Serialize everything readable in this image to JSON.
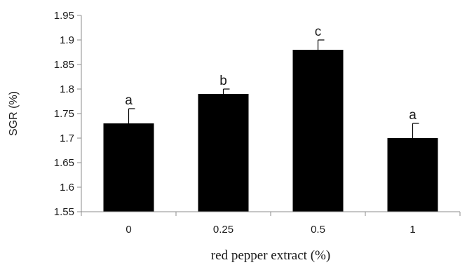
{
  "chart_data": {
    "type": "bar",
    "categories": [
      "0",
      "0.25",
      "0.5",
      "1"
    ],
    "values": [
      1.73,
      1.79,
      1.88,
      1.7
    ],
    "error": [
      0.03,
      0.01,
      0.02,
      0.03
    ],
    "significance": [
      "a",
      "b",
      "c",
      "a"
    ],
    "title": "",
    "xlabel": "red pepper extract (%)",
    "ylabel": "SGR (%)",
    "ylim": [
      1.55,
      1.95
    ],
    "yticks": [
      1.55,
      1.6,
      1.65,
      1.7,
      1.75,
      1.8,
      1.85,
      1.9,
      1.95
    ],
    "ytick_labels": [
      "1.55",
      "1.6",
      "1.65",
      "1.7",
      "1.75",
      "1.8",
      "1.85",
      "1.9",
      "1.95"
    ],
    "grid": false,
    "bar_color": "#000000",
    "axis_color": "#8c8c8c"
  }
}
